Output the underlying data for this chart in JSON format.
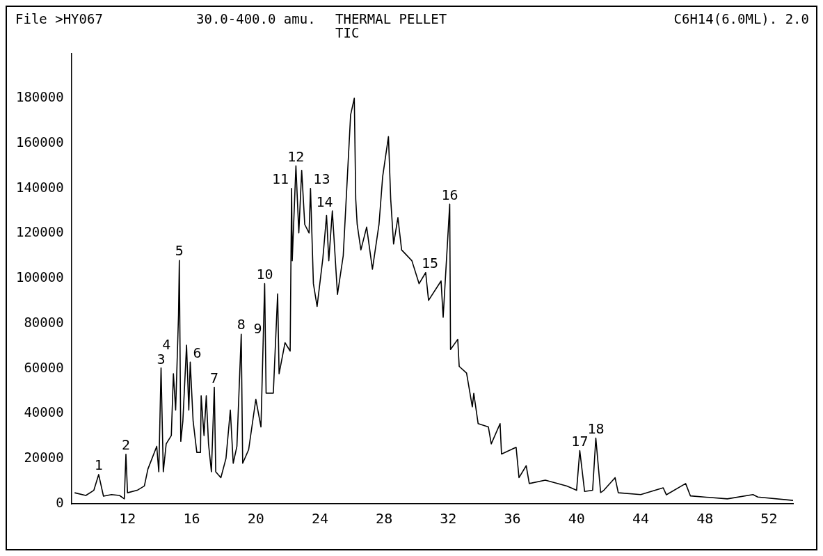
{
  "chart_data": {
    "type": "line",
    "title": "THERMAL PELLET",
    "subtitle": "TIC",
    "annotations": [
      "File >HY067",
      "30.0-400.0 amu.",
      "C6H14(6.0ML). 2.0",
      {
        "text": "1",
        "x": 10.2,
        "y": 13000
      },
      {
        "text": "2",
        "x": 11.9,
        "y": 22000
      },
      {
        "text": "3",
        "x": 14.09,
        "y": 60000
      },
      {
        "text": "4",
        "x": 14.86,
        "y": 57700
      },
      {
        "text": "5",
        "x": 15.23,
        "y": 108000
      },
      {
        "text": "6",
        "x": 15.91,
        "y": 62900
      },
      {
        "text": "7",
        "x": 17.41,
        "y": 51700
      },
      {
        "text": "8",
        "x": 19.09,
        "y": 75300
      },
      {
        "text": "9",
        "x": 20.55,
        "y": 70000
      },
      {
        "text": "10",
        "x": 20.55,
        "y": 97700
      },
      {
        "text": "11",
        "x": 22.23,
        "y": 140000
      },
      {
        "text": "12",
        "x": 22.5,
        "y": 150000
      },
      {
        "text": "13",
        "x": 23.41,
        "y": 140000
      },
      {
        "text": "14",
        "x": 23.59,
        "y": 120000
      },
      {
        "text": "15",
        "x": 31.55,
        "y": 98900
      },
      {
        "text": "16",
        "x": 32.09,
        "y": 133000
      },
      {
        "text": "17",
        "x": 40.2,
        "y": 23600
      },
      {
        "text": "18",
        "x": 41.2,
        "y": 29200
      }
    ],
    "x": [
      8.7,
      9.4,
      9.9,
      10.2,
      10.5,
      11.0,
      11.5,
      11.8,
      11.9,
      12.0,
      12.6,
      13.05,
      13.27,
      13.82,
      13.95,
      14.09,
      14.23,
      14.41,
      14.73,
      14.86,
      15.0,
      15.18,
      15.23,
      15.32,
      15.45,
      15.68,
      15.82,
      15.91,
      16.09,
      16.32,
      16.55,
      16.59,
      16.77,
      16.91,
      17.05,
      17.23,
      17.41,
      17.5,
      17.82,
      18.14,
      18.41,
      18.59,
      18.82,
      19.09,
      19.18,
      19.55,
      20.0,
      20.32,
      20.55,
      20.64,
      21.09,
      21.36,
      21.45,
      21.82,
      22.14,
      22.23,
      22.27,
      22.5,
      22.68,
      22.86,
      23.05,
      23.32,
      23.41,
      23.59,
      23.82,
      24.18,
      24.41,
      24.55,
      24.77,
      25.09,
      25.45,
      25.91,
      26.14,
      26.23,
      26.32,
      26.55,
      26.91,
      27.27,
      27.68,
      27.91,
      28.27,
      28.41,
      28.59,
      28.86,
      29.09,
      29.73,
      30.18,
      30.59,
      30.77,
      31.55,
      31.68,
      32.09,
      32.14,
      32.59,
      32.68,
      33.14,
      33.5,
      33.59,
      33.86,
      34.5,
      34.68,
      35.23,
      35.32,
      36.23,
      36.41,
      36.86,
      37.05,
      38.05,
      39.4,
      40.0,
      40.2,
      40.5,
      41.0,
      41.2,
      41.5,
      41.7,
      42.4,
      42.6,
      44.0,
      45.4,
      45.6,
      46.8,
      47.1,
      49.4,
      51.0,
      51.3,
      53.5
    ],
    "values": [
      4900,
      3700,
      6000,
      13000,
      3400,
      4100,
      3700,
      2200,
      22000,
      4900,
      6000,
      7900,
      15400,
      25500,
      14200,
      60300,
      14200,
      26600,
      30300,
      57700,
      41600,
      83900,
      108000,
      27700,
      36700,
      70400,
      41600,
      62900,
      36700,
      22800,
      22800,
      47900,
      30300,
      47900,
      26600,
      14200,
      51700,
      14200,
      11600,
      20200,
      41600,
      18000,
      25500,
      75300,
      18000,
      24000,
      46400,
      34100,
      97700,
      49100,
      49100,
      93200,
      57700,
      71500,
      67800,
      140000,
      107900,
      150000,
      120200,
      148000,
      124000,
      120200,
      140000,
      97700,
      87600,
      109000,
      128000,
      107900,
      130000,
      92900,
      110100,
      172600,
      180000,
      135200,
      124000,
      112700,
      122800,
      104100,
      124000,
      145300,
      163000,
      135200,
      115300,
      127000,
      112700,
      107900,
      97700,
      102600,
      90300,
      98900,
      82800,
      133000,
      68500,
      73000,
      61000,
      58000,
      43000,
      49000,
      35600,
      34100,
      26600,
      35600,
      22100,
      25100,
      11600,
      16900,
      9000,
      10500,
      7900,
      6000,
      23600,
      5500,
      6000,
      29200,
      5000,
      6000,
      11600,
      4900,
      4100,
      7100,
      4000,
      9000,
      3500,
      2200,
      4100,
      3000,
      1500
    ],
    "color": "#000000",
    "xlim": [
      8.5,
      53.5
    ],
    "xticks": [
      12,
      16,
      20,
      24,
      28,
      32,
      36,
      40,
      44,
      48,
      52
    ],
    "ylim": [
      0,
      200000
    ],
    "yticks": [
      0,
      20000,
      40000,
      60000,
      80000,
      100000,
      120000,
      140000,
      160000,
      180000
    ],
    "grid": false,
    "legend": false,
    "marker": "none",
    "line_style": "solid"
  }
}
